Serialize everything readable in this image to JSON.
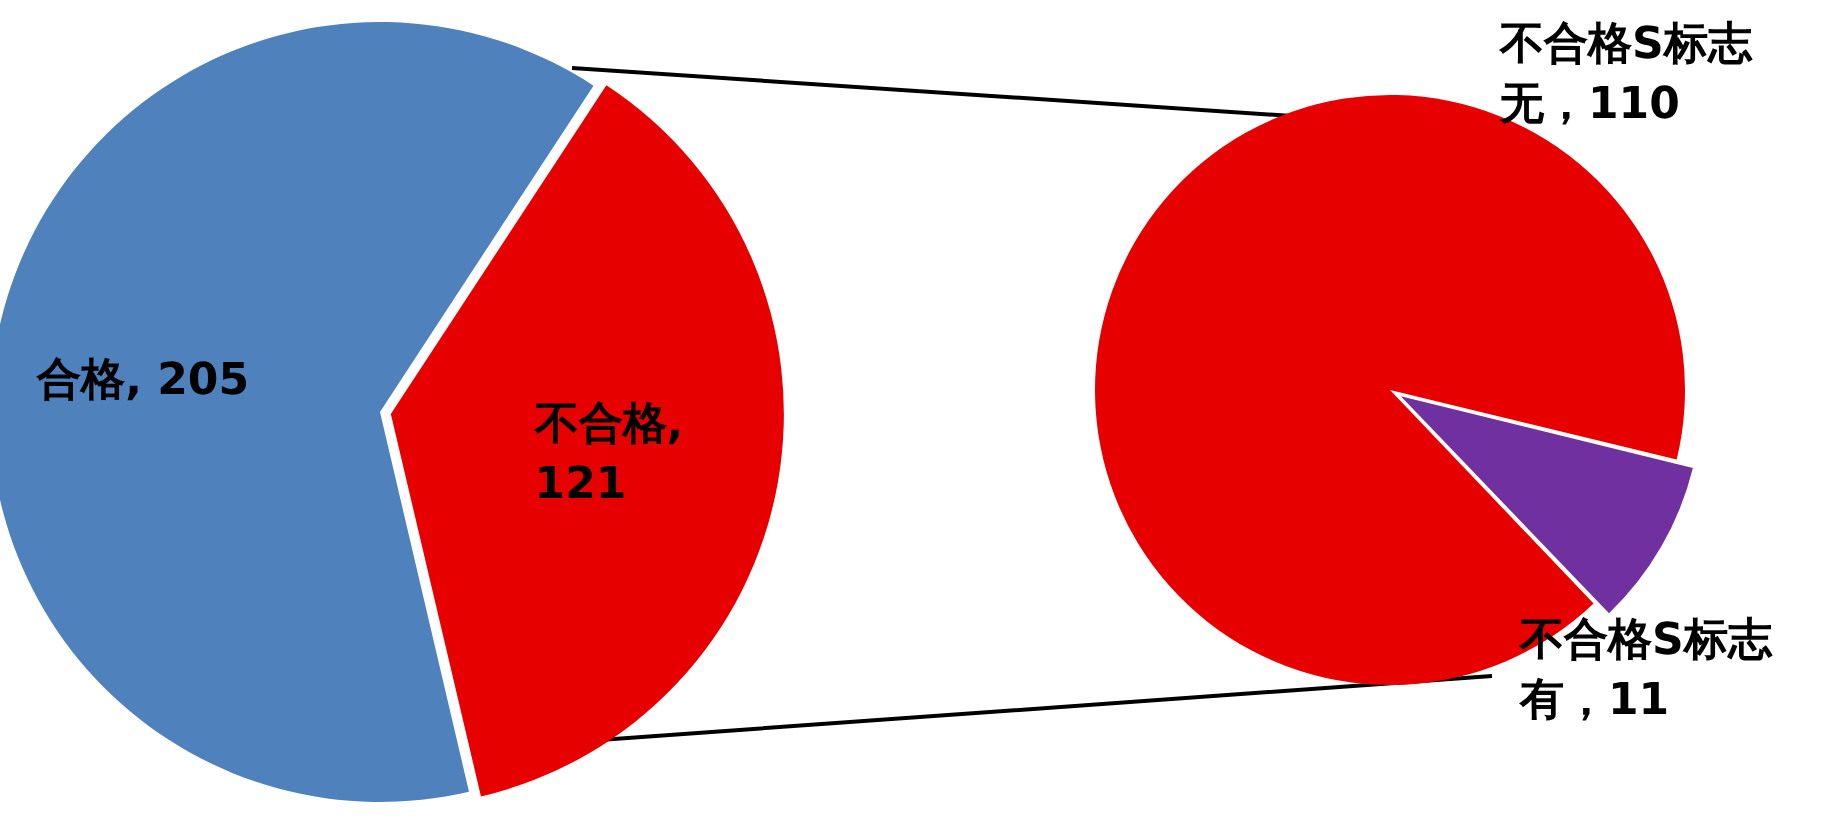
{
  "chart_data": [
    {
      "type": "pie",
      "categories": [
        "合格",
        "不合格"
      ],
      "values": [
        205,
        121
      ],
      "colors": [
        "#4f81bd",
        "#e60000"
      ],
      "value_labels": [
        ", 205",
        ", 121"
      ],
      "legend": false
    },
    {
      "type": "pie",
      "categories": [
        "不合格S标志无",
        "不合格S标志有"
      ],
      "values": [
        110,
        11
      ],
      "colors": [
        "#e60000",
        "#7030a0"
      ],
      "value_labels": [
        "，110",
        "，11"
      ],
      "legend": false
    }
  ]
}
